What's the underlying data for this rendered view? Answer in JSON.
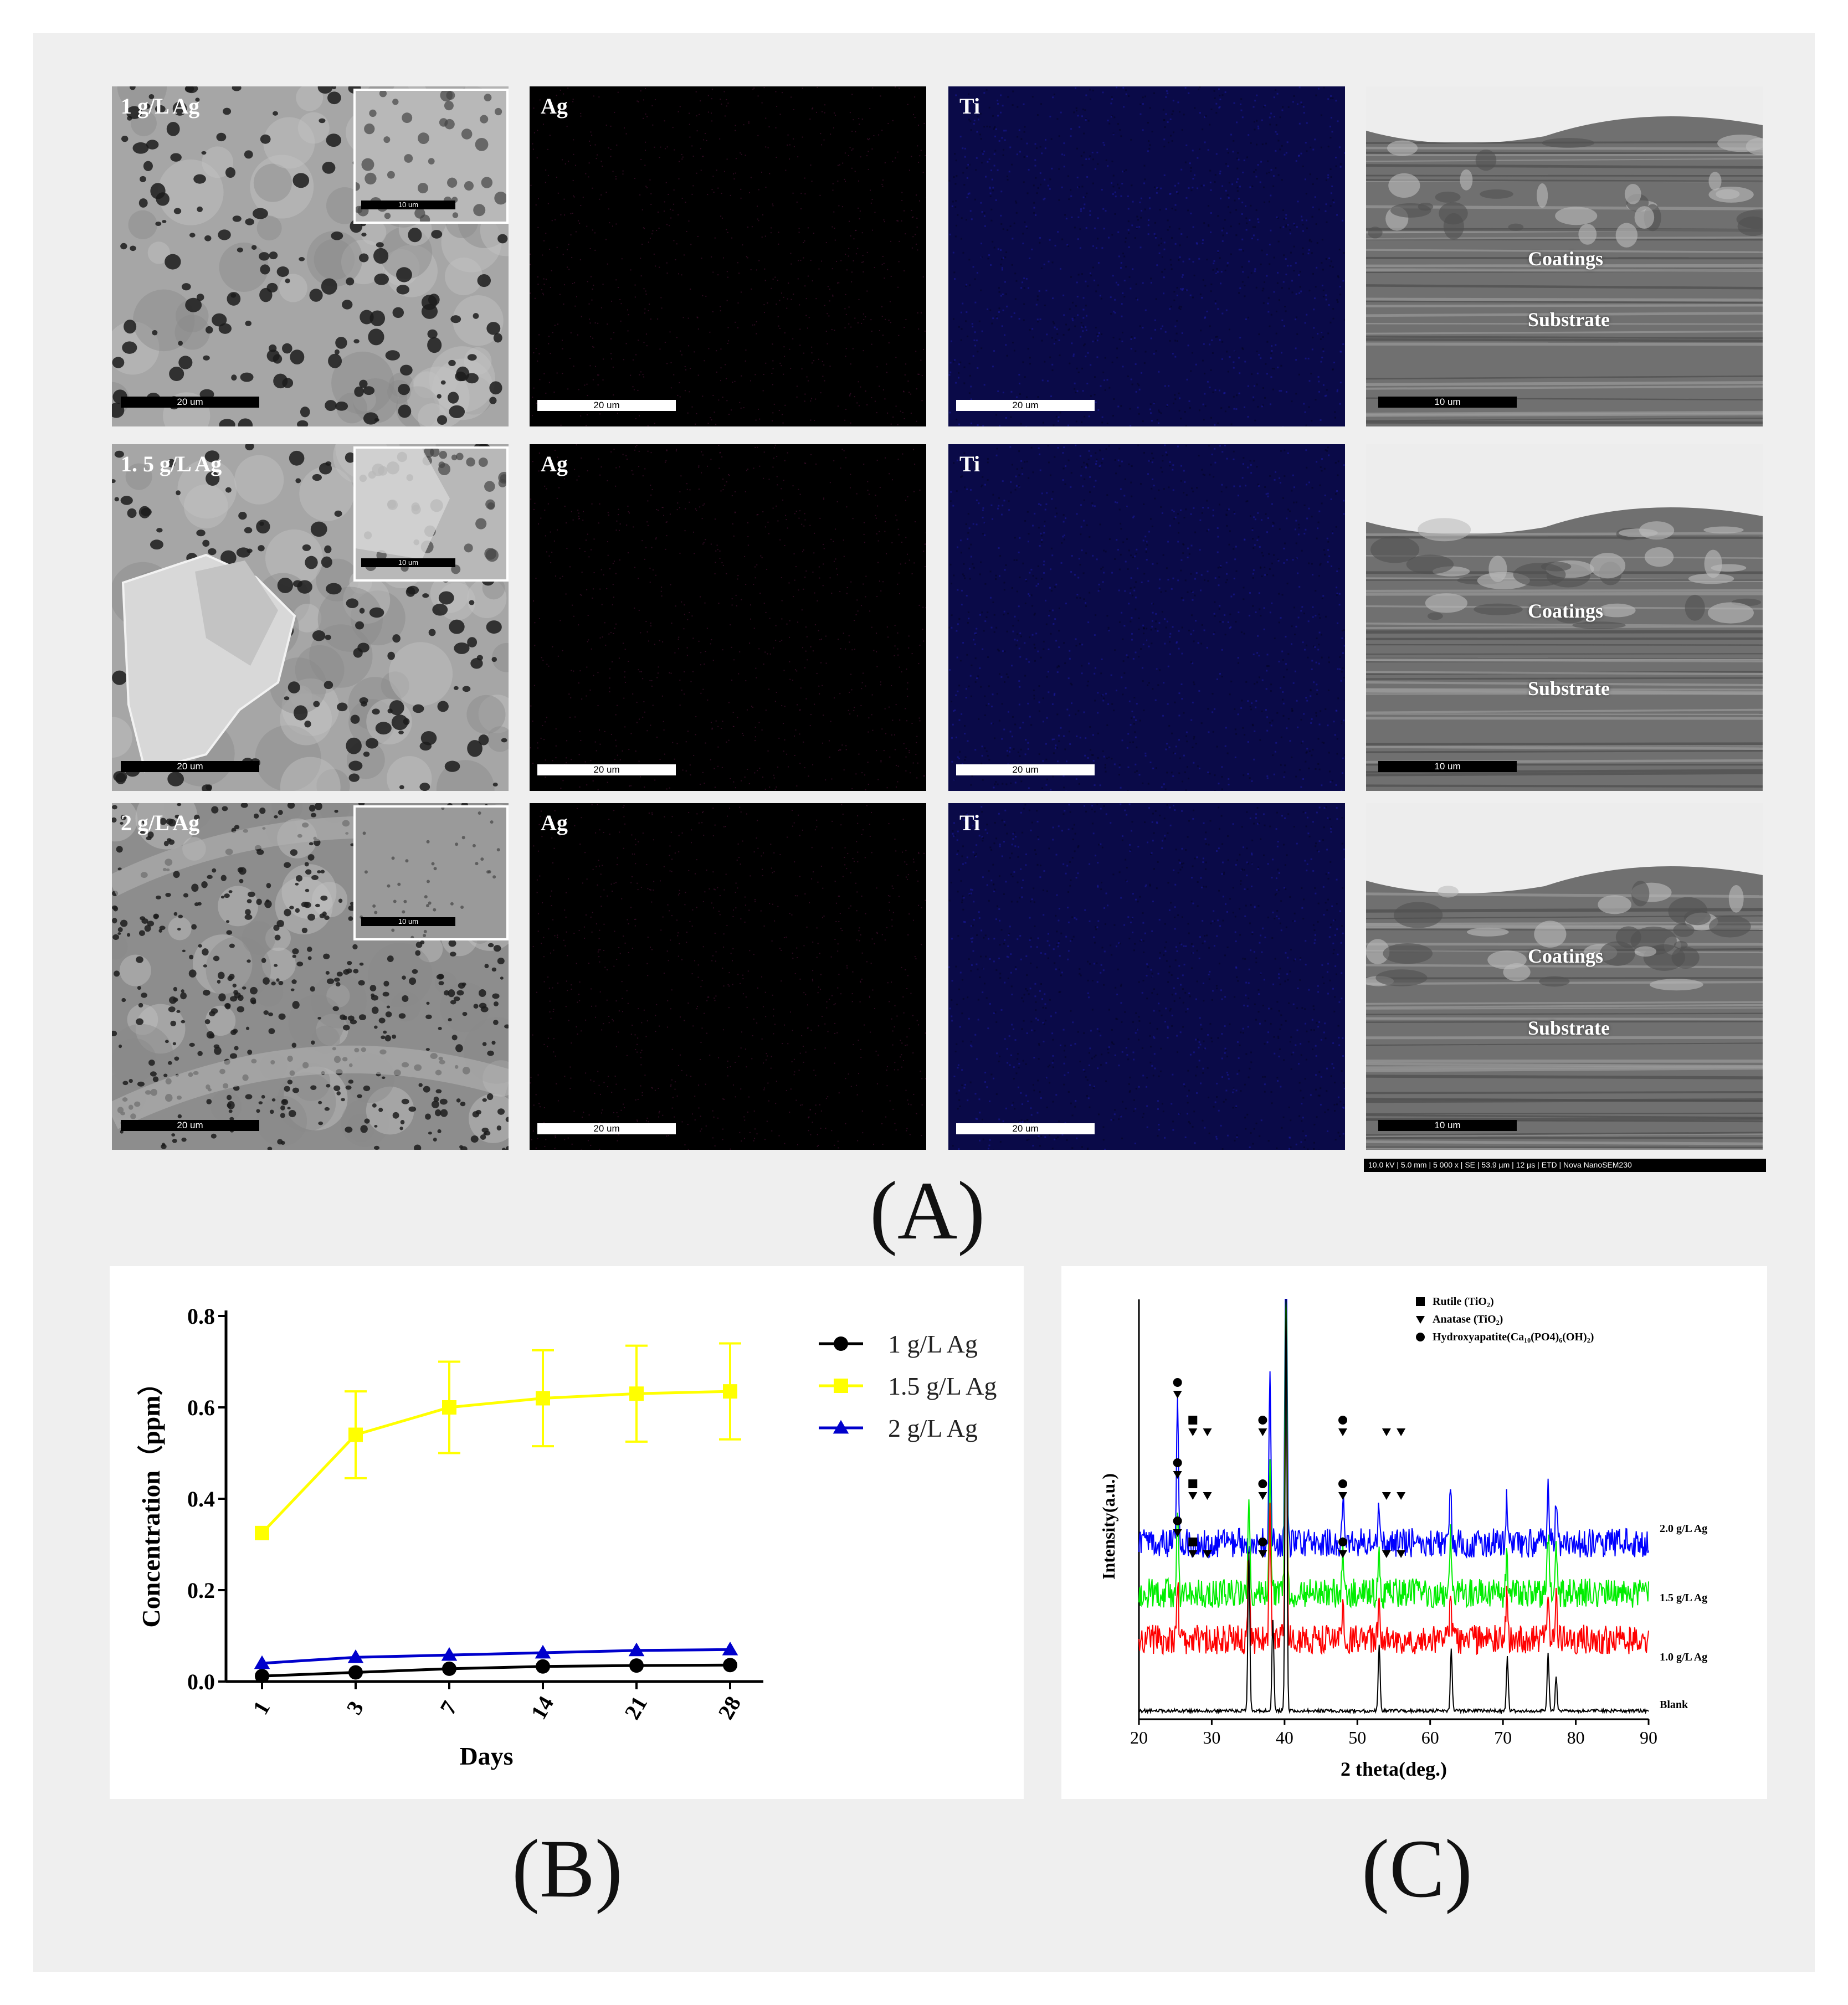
{
  "figure": {
    "panel_a": {
      "caption": "(A)",
      "rows": [
        {
          "sem_label": "1 g/L Ag",
          "sem_scale": "20 um",
          "inset_scale": "10 um",
          "ag_label": "Ag",
          "ag_scale": "20 um",
          "ti_label": "Ti",
          "ti_scale": "20 um",
          "cross_coatings": "Coatings",
          "cross_substrate": "Substrate",
          "cross_scale": "10 um"
        },
        {
          "sem_label": "1. 5 g/L Ag",
          "sem_scale": "20 um",
          "inset_scale": "10 um",
          "ag_label": "Ag",
          "ag_scale": "20 um",
          "ti_label": "Ti",
          "ti_scale": "20 um",
          "cross_coatings": "Coatings",
          "cross_substrate": "Substrate",
          "cross_scale": "10 um"
        },
        {
          "sem_label": "2 g/L Ag",
          "sem_scale": "20 um",
          "inset_scale": "10 um",
          "ag_label": "Ag",
          "ag_scale": "20 um",
          "ti_label": "Ti",
          "ti_scale": "20 um",
          "cross_coatings": "Coatings",
          "cross_substrate": "Substrate",
          "cross_scale": "10 um"
        }
      ],
      "info_bar": "10.0 kV | 5.0 mm | 5 000 x | SE | 53.9 µm | 12 µs | ETD | Nova NanoSEM230"
    },
    "panel_b": {
      "caption": "(B)"
    },
    "panel_c": {
      "caption": "(C)"
    }
  },
  "chart_data": [
    {
      "type": "line",
      "xlabel": "Days",
      "ylabel": "Concentration（ppm）",
      "categories": [
        "1",
        "3",
        "7",
        "14",
        "21",
        "28"
      ],
      "ylim": [
        0,
        0.8
      ],
      "yticks": [
        "0.0",
        "0.2",
        "0.4",
        "0.6",
        "0.8"
      ],
      "legend_position": "top-right",
      "series": [
        {
          "name": "1 g/L Ag",
          "color": "#000000",
          "marker": "circle",
          "values": [
            0.012,
            0.02,
            0.028,
            0.033,
            0.035,
            0.036
          ]
        },
        {
          "name": "1.5 g/L Ag",
          "color": "#ffff00",
          "marker": "square",
          "values": [
            0.325,
            0.54,
            0.6,
            0.62,
            0.63,
            0.635
          ],
          "errors": [
            0,
            0.095,
            0.1,
            0.105,
            0.105,
            0.105
          ]
        },
        {
          "name": "2 g/L Ag",
          "color": "#0000cc",
          "marker": "triangle",
          "values": [
            0.04,
            0.053,
            0.058,
            0.063,
            0.068,
            0.07
          ]
        }
      ]
    },
    {
      "type": "line",
      "xlabel": "2 theta(deg.)",
      "ylabel": "Intensity(a.u.)",
      "xlim": [
        20,
        90
      ],
      "xticks": [
        "20",
        "30",
        "40",
        "50",
        "60",
        "70",
        "80",
        "90"
      ],
      "legend_position": "top-center",
      "legend": [
        {
          "marker": "square",
          "label": "Rutile (TiO₂)"
        },
        {
          "marker": "triangle-down",
          "label": "Anatase (TiO₂)"
        },
        {
          "marker": "circle",
          "label": "Hydroxyapatite(Ca₁₀(PO4)₆(OH)₂)"
        }
      ],
      "series": [
        {
          "name": "2.0 g/L Ag",
          "color": "#0000ff",
          "baseline": 0.42,
          "peaks": [
            [
              25.3,
              0.32
            ],
            [
              38.0,
              0.4
            ],
            [
              40.2,
              0.99
            ],
            [
              48.0,
              0.12
            ],
            [
              53.0,
              0.1
            ],
            [
              62.8,
              0.14
            ],
            [
              70.5,
              0.1
            ],
            [
              76.2,
              0.14
            ],
            [
              77.3,
              0.1
            ]
          ]
        },
        {
          "name": "1.5 g/L Ag",
          "color": "#00ee00",
          "baseline": 0.3,
          "peaks": [
            [
              25.3,
              0.22
            ],
            [
              35.1,
              0.2
            ],
            [
              38.0,
              0.3
            ],
            [
              40.2,
              0.9
            ],
            [
              48.0,
              0.1
            ],
            [
              53.0,
              0.1
            ],
            [
              62.8,
              0.14
            ],
            [
              70.5,
              0.08
            ],
            [
              76.2,
              0.15
            ],
            [
              77.3,
              0.1
            ]
          ]
        },
        {
          "name": "1.0 g/L Ag",
          "color": "#ff0000",
          "baseline": 0.19,
          "peaks": [
            [
              25.3,
              0.14
            ],
            [
              35.1,
              0.22
            ],
            [
              38.0,
              0.3
            ],
            [
              40.2,
              0.75
            ],
            [
              48.0,
              0.08
            ],
            [
              53.0,
              0.12
            ],
            [
              62.8,
              0.12
            ],
            [
              70.5,
              0.1
            ],
            [
              76.2,
              0.13
            ],
            [
              77.3,
              0.1
            ]
          ]
        },
        {
          "name": "Blank",
          "color": "#000000",
          "baseline": 0.02,
          "peaks": [
            [
              35.1,
              0.38
            ],
            [
              38.4,
              0.22
            ],
            [
              40.2,
              1.0
            ],
            [
              53.0,
              0.16
            ],
            [
              62.9,
              0.15
            ],
            [
              70.6,
              0.13
            ],
            [
              76.2,
              0.14
            ],
            [
              77.3,
              0.08
            ]
          ]
        }
      ]
    }
  ]
}
